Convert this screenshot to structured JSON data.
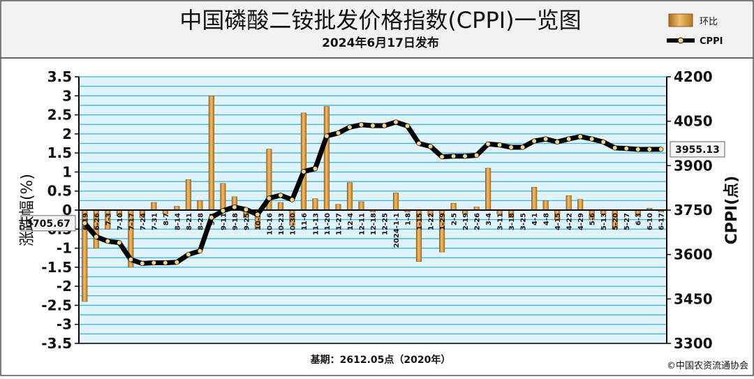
{
  "header": {
    "title": "中国磷酸二铵批发价格指数(CPPI)一览图",
    "subtitle": "2024年6月17日发布"
  },
  "legend": {
    "items": [
      {
        "label": "环比",
        "color": "#c8882e"
      },
      {
        "label": "CPPI",
        "color": "#000000"
      }
    ]
  },
  "footer": {
    "base": "基期：2612.05点（2020年）",
    "copyright": "©中国农资流通协会"
  },
  "colors": {
    "plot_background": "#e2f4fb",
    "grid_line": "#35b5e0",
    "bar": "#c8882e",
    "bar_highlight": "#f0c070",
    "line": "#000000",
    "marker": "#f3d58a"
  },
  "chart_data": {
    "type": "bar",
    "ylabel": "涨跌幅(%)",
    "y2label": "CPPI(点)",
    "ylim": [
      -3.5,
      3.5
    ],
    "y2lim": [
      3300,
      4200
    ],
    "yticks": [
      "3.5",
      "3",
      "2.5",
      "2",
      "1.5",
      "1",
      "0.5",
      "0",
      "-0.5",
      "-1",
      "-1.5",
      "-2",
      "-2.5",
      "-3",
      "-3.5"
    ],
    "y2ticks": [
      "4200",
      "4050",
      "3900",
      "3750",
      "3600",
      "3450",
      "3300"
    ],
    "categories": [
      "6-19",
      "6-26",
      "7-3",
      "7-10",
      "7-17",
      "7-24",
      "7-31",
      "8-7",
      "8-14",
      "8-21",
      "8-28",
      "9-4",
      "9-11",
      "9-18",
      "9-25",
      "10-9",
      "10-16",
      "10-23",
      "10-30",
      "11-6",
      "11-13",
      "11-20",
      "11-27",
      "12-4",
      "12-11",
      "12-18",
      "12-25",
      "2024-1-1",
      "1-8",
      "1-15",
      "1-22",
      "1-29",
      "2-5",
      "2-19",
      "2-26",
      "3-4",
      "3-11",
      "3-18",
      "3-25",
      "4-1",
      "4-8",
      "4-15",
      "4-22",
      "4-29",
      "5-6",
      "5-13",
      "5-20",
      "5-27",
      "6-3",
      "6-10",
      "6-17"
    ],
    "series": [
      {
        "name": "环比",
        "type": "bar",
        "axis": "left",
        "values": [
          -2.4,
          -1.0,
          -0.5,
          -0.15,
          -1.5,
          -0.2,
          0.2,
          -0.1,
          0.1,
          0.8,
          0.25,
          3.0,
          0.7,
          0.35,
          -0.2,
          -0.5,
          1.6,
          0.2,
          -0.4,
          2.55,
          0.3,
          2.72,
          0.15,
          0.72,
          0.22,
          -0.05,
          0.0,
          0.45,
          -0.05,
          -1.35,
          -0.15,
          -1.1,
          0.18,
          -0.1,
          0.08,
          1.1,
          -0.1,
          -0.2,
          0.0,
          0.6,
          0.25,
          -0.25,
          0.38,
          0.28,
          -0.25,
          -0.1,
          -0.5,
          0.0,
          -0.15,
          0.05,
          -0.05
        ]
      },
      {
        "name": "CPPI",
        "type": "line",
        "axis": "right",
        "values": [
          3705.67,
          3660,
          3645,
          3640,
          3583,
          3570,
          3572,
          3572,
          3574,
          3600,
          3612,
          3725,
          3748,
          3760,
          3752,
          3735,
          3790,
          3800,
          3785,
          3880,
          3890,
          4000,
          4010,
          4030,
          4038,
          4035,
          4035,
          4047,
          4034,
          3975,
          3965,
          3930,
          3932,
          3932,
          3935,
          3973,
          3970,
          3962,
          3962,
          3983,
          3990,
          3980,
          3990,
          3998,
          3990,
          3980,
          3960,
          3958,
          3955,
          3955,
          3955.13
        ]
      }
    ],
    "annotations": [
      {
        "label": "3705.67",
        "index": 0
      },
      {
        "label": "3955.13",
        "index": 50
      }
    ],
    "legend_position": "top-right",
    "grid": true
  }
}
